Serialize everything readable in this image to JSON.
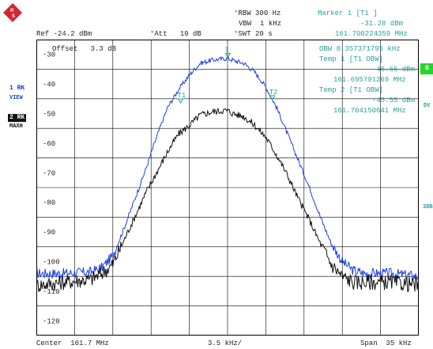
{
  "header": {
    "rbw": {
      "star": "*",
      "label": "RBW",
      "value": "300 Hz"
    },
    "vbw": {
      "label": "VBW",
      "value": "1 kHz"
    },
    "swt": {
      "star": "*",
      "label": "SWT",
      "value": "20 s"
    },
    "ref": {
      "label": "Ref",
      "value": "-24.2 dBm"
    },
    "att": {
      "star": "*",
      "label": "Att",
      "value": "10 dB"
    },
    "offset": {
      "label": "Offset",
      "value": "3.3 dB"
    }
  },
  "marker_info": {
    "m1_title": "Marker 1 [T1 ]",
    "m1_level": "-31.28 dBm",
    "m1_freq": "161.700224359 MHz",
    "obw_label": "OBW",
    "obw_value": "8.357371795 kHz",
    "t1_title": "Temp 1 [T1 OBW]",
    "t1_level": "-46.66 dBm",
    "t1_freq": "161.695791269 MHz",
    "t2_title": "Temp 2 [T1 OBW]",
    "t2_level": "-45.55 dBm",
    "t2_freq": "161.704150641 MHz"
  },
  "side_left": {
    "trace1_label": "1 RK",
    "trace1_sub": "VIEW",
    "trace2_label": "2 RK",
    "trace2_sub": "MAXH"
  },
  "side_right": {
    "b_label": "B",
    "dv_label": "DV",
    "three_db_label": "3DB"
  },
  "y_axis": {
    "ticks": [
      "-30",
      "-40",
      "-50",
      "-60",
      "-70",
      "-80",
      "-90",
      "-100",
      "-110",
      "-120"
    ]
  },
  "footer": {
    "center_label": "Center",
    "center_value": "161.7 MHz",
    "div_value": "3.5 kHz/",
    "span_label": "Span",
    "span_value": "35 kHz"
  },
  "markers": {
    "m1": "1",
    "t1": "T1",
    "t2": "T2"
  },
  "colors": {
    "trace1": "#1c3fe0",
    "trace2": "#111111",
    "annotation": "#2aa198",
    "star": "#11aa44",
    "logo_red": "#d22630"
  },
  "chart_data": {
    "type": "line",
    "title": "",
    "xlabel": "",
    "ylabel": "",
    "x_unit": "kHz offset from 161.7 MHz",
    "xlim": [
      -17.5,
      17.5
    ],
    "ylim": [
      -125,
      -25
    ],
    "grid": true,
    "series": [
      {
        "name": "1 RK VIEW",
        "x": [
          -17.5,
          -15.0,
          -12.5,
          -11.5,
          -10.5,
          -9.5,
          -8.5,
          -7.5,
          -6.5,
          -5.5,
          -4.5,
          -3.5,
          -2.5,
          -1.5,
          -0.5,
          0.0,
          0.5,
          1.5,
          2.5,
          3.5,
          4.5,
          5.5,
          6.5,
          7.5,
          8.5,
          9.5,
          10.5,
          11.5,
          12.5,
          15.0,
          17.5
        ],
        "values": [
          -104,
          -104,
          -103.5,
          -102,
          -98,
          -89,
          -79,
          -69,
          -58,
          -48,
          -42,
          -37,
          -33,
          -32,
          -31.5,
          -31.3,
          -32,
          -33,
          -36,
          -41,
          -48,
          -57,
          -66,
          -75,
          -85,
          -94,
          -100,
          -103,
          -104,
          -104,
          -105
        ]
      },
      {
        "name": "2 RK MAXH",
        "x": [
          -17.5,
          -15.0,
          -12.5,
          -11.5,
          -10.5,
          -9.5,
          -8.5,
          -7.5,
          -6.5,
          -5.5,
          -4.5,
          -3.5,
          -2.5,
          -1.5,
          -0.5,
          0.0,
          0.5,
          1.5,
          2.5,
          3.5,
          4.5,
          5.5,
          6.5,
          7.5,
          8.5,
          9.5,
          10.5,
          11.5,
          12.5,
          15.0,
          17.5
        ],
        "values": [
          -108,
          -107,
          -106,
          -104,
          -101,
          -93,
          -85,
          -77,
          -70,
          -63,
          -57,
          -54,
          -50.5,
          -49.5,
          -49,
          -49,
          -50,
          -51,
          -54,
          -58,
          -64,
          -71,
          -79,
          -86,
          -94,
          -101,
          -105,
          -107,
          -107,
          -107,
          -108
        ]
      }
    ]
  }
}
